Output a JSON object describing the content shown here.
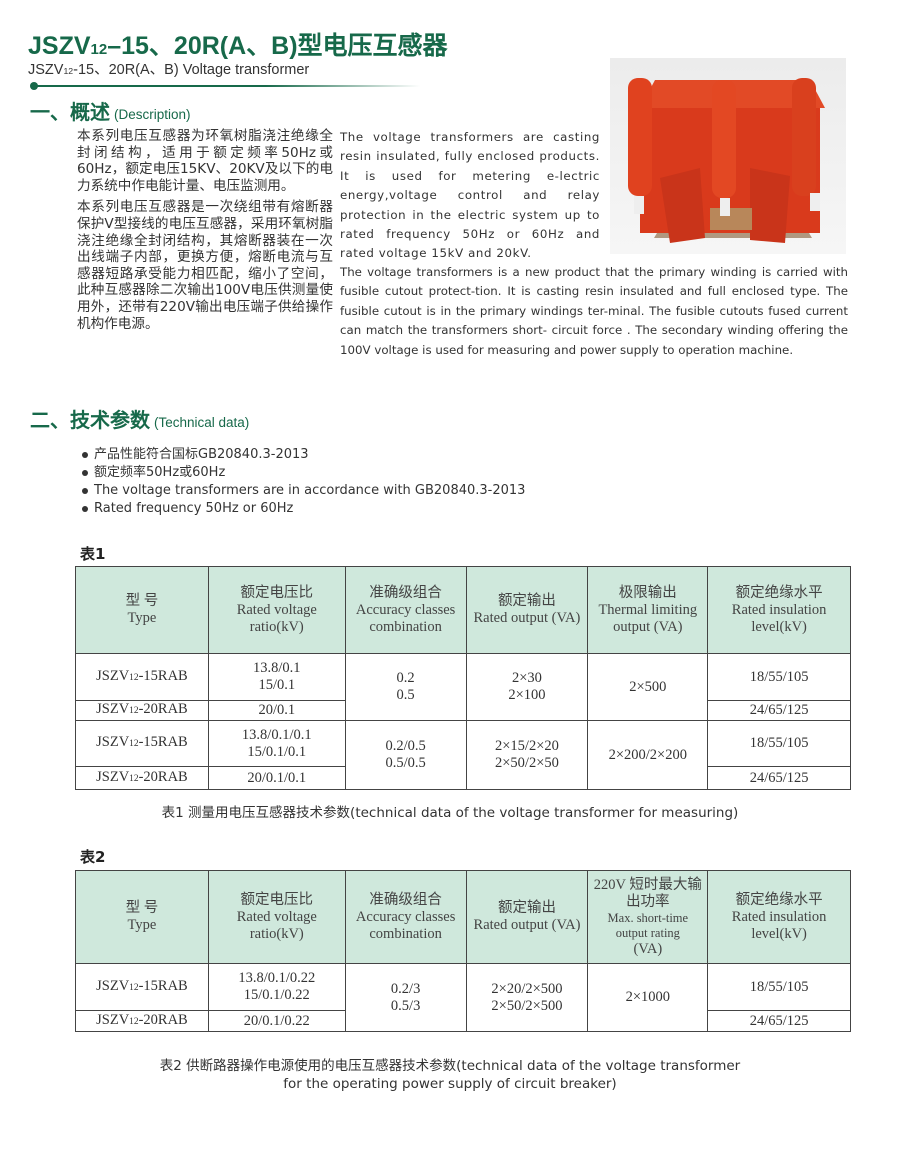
{
  "header": {
    "title_pre": "JSZV",
    "title_sub": "12",
    "title_post": "–15、20R(A、B)型电压互感器",
    "subtitle_pre": "JSZV",
    "subtitle_sub": "12",
    "subtitle_post": "-15、20R(A、B) Voltage transformer",
    "accent": "#17694a"
  },
  "section1": {
    "heading": "一、概述",
    "heading_en": "(Description)",
    "zh_p1": "本系列电压互感器为环氧树脂浇注绝缘全封闭结构，适用于额定频率50Hz或60Hz，额定电压15KV、20KV及以下的电力系统中作电能计量、电压监测用。",
    "zh_p2": "本系列电压互感器是一次绕组带有熔断器保护V型接线的电压互感器，采用环氧树脂浇注绝缘全封闭结构，其熔断器装在一次出线端子内部，更换方便，熔断电流与互感器短路承受能力相匹配，缩小了空间，此种互感器除二次输出100V电压供测量使用外，还带有220V输出电压端子供给操作机构作电源。",
    "en_p1": "The voltage transformers are casting resin insulated, fully enclosed products. It is used for metering e-lectric energy,voltage control and relay protection in the electric system up to rated frequency 50Hz or 60Hz and rated voltage 15kV and 20kV.",
    "en_p2": "The voltage transformers is a new product that the primary winding  is carried with fusible cutout protect-tion. It is casting resin insulated and full enclosed type. The fusible cutout is in the primary windings ter-minal. The fusible cutouts fused current can match the transformers short- circuit force . The secondary winding offering the 100V voltage is used for measuring and power supply to operation machine."
  },
  "section2": {
    "heading": "二、技术参数",
    "heading_en": "(Technical data)",
    "bullets": [
      "产品性能符合国标GB20840.3-2013",
      "额定频率50Hz或60Hz",
      "The voltage transformers are in accordance with GB20840.3-2013",
      "Rated frequency 50Hz or 60Hz"
    ]
  },
  "table1": {
    "label": "表1",
    "headers": [
      [
        "型  号",
        "Type"
      ],
      [
        "额定电压比",
        "Rated voltage ratio(kV)"
      ],
      [
        "准确级组合",
        "Accuracy classes combination"
      ],
      [
        "额定输出",
        "Rated output (VA)"
      ],
      [
        "极限输出",
        "Thermal limiting output (VA)"
      ],
      [
        "额定绝缘水平",
        "Rated  insulation level(kV)"
      ]
    ],
    "rows": [
      {
        "type": "-15RAB",
        "ratio": [
          "13.8/0.1",
          "15/0.1"
        ],
        "accuracy": [
          "0.2",
          "0.5"
        ],
        "output": [
          "2×30",
          "2×100"
        ],
        "thermal": "2×500",
        "insulation": "18/55/105"
      },
      {
        "type": "-20RAB",
        "ratio": [
          "20/0.1"
        ],
        "insulation": "24/65/125"
      },
      {
        "type": "-15RAB",
        "ratio": [
          "13.8/0.1/0.1",
          "15/0.1/0.1"
        ],
        "accuracy": [
          "0.2/0.5",
          "0.5/0.5"
        ],
        "output": [
          "2×15/2×20",
          "2×50/2×50"
        ],
        "thermal": "2×200/2×200",
        "insulation": "18/55/105"
      },
      {
        "type": "-20RAB",
        "ratio": [
          "20/0.1/0.1"
        ],
        "insulation": "24/65/125"
      }
    ],
    "caption": "表1 测量用电压互感器技术参数(technical data of the voltage transformer for measuring)"
  },
  "table2": {
    "label": "表2",
    "headers": [
      [
        "型  号",
        "Type"
      ],
      [
        "额定电压比",
        "Rated voltage ratio(kV)"
      ],
      [
        "准确级组合",
        "Accuracy classes combination"
      ],
      [
        "额定输出",
        "Rated output (VA)"
      ],
      [
        "220V 短时最大输出功率",
        "Max. short-time output rating",
        "(VA)"
      ],
      [
        "额定绝缘水平",
        "Rated  insulation level(kV)"
      ]
    ],
    "rows": [
      {
        "type": "-15RAB",
        "ratio": [
          "13.8/0.1/0.22",
          "15/0.1/0.22"
        ],
        "accuracy": [
          "0.2/3",
          "0.5/3"
        ],
        "output": [
          "2×20/2×500",
          "2×50/2×500"
        ],
        "thermal": "2×1000",
        "insulation": "18/55/105"
      },
      {
        "type": "-20RAB",
        "ratio": [
          "20/0.1/0.22"
        ],
        "insulation": "24/65/125"
      }
    ],
    "caption_line1": "表2 供断路器操作电源使用的电压互感器技术参数(technical data of the voltage transformer",
    "caption_line2": "for the operating power supply of circuit breaker)"
  },
  "type_prefix": "JSZV",
  "type_sub": "12",
  "colors": {
    "header_bg": "#cfe8dc",
    "product": "#d93a1c"
  }
}
